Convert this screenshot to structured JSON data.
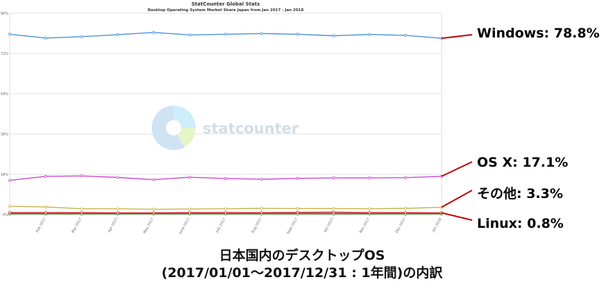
{
  "chart_data": {
    "type": "line",
    "title": "StatCounter Global Stats",
    "subtitle": "Desktop Operating System Market Share Japan from Jan 2017 - Jan 2018",
    "watermark": "statcounter",
    "categories": [
      "",
      "Feb 2017",
      "Mar 2017",
      "Apr 2017",
      "May 2017",
      "June 2017",
      "July 2017",
      "Aug 2017",
      "Sept 2017",
      "Oct 2017",
      "Nov 2017",
      "Dec 2017",
      "Jan 2018"
    ],
    "y_ticks": [
      0,
      18,
      36,
      54,
      72,
      90
    ],
    "y_tick_labels": [
      "0%",
      "18%",
      "36%",
      "54%",
      "72%",
      "90%"
    ],
    "ylim": [
      0,
      90
    ],
    "grid": true,
    "series": [
      {
        "name": "Windows",
        "color": "#4a90d9",
        "values": [
          80.6,
          78.9,
          79.5,
          80.4,
          81.4,
          80.3,
          80.6,
          80.9,
          80.6,
          79.9,
          80.5,
          80.1,
          78.8
        ]
      },
      {
        "name": "OS X",
        "color": "#c84ad0",
        "values": [
          15.3,
          17.1,
          17.3,
          16.6,
          15.6,
          16.7,
          16.1,
          15.8,
          16.2,
          16.4,
          16.4,
          16.5,
          17.1
        ]
      },
      {
        "name": "その他",
        "color": "#c8b44a",
        "values": [
          3.7,
          3.4,
          2.6,
          2.6,
          2.4,
          2.5,
          2.6,
          2.8,
          2.7,
          2.7,
          2.6,
          2.8,
          3.3
        ]
      },
      {
        "name": "Linux",
        "color": "#cc2b2b",
        "values": [
          0.9,
          0.9,
          0.9,
          0.8,
          0.8,
          0.9,
          0.9,
          0.9,
          1.0,
          1.1,
          0.9,
          0.9,
          0.8
        ]
      },
      {
        "name": "",
        "color": "#5a8a3a",
        "values": [
          0.3,
          0.3,
          0.3,
          0.3,
          0.3,
          0.3,
          0.3,
          0.3,
          0.3,
          0.3,
          0.3,
          0.3,
          0.3
        ]
      },
      {
        "name": "",
        "color": "#333333",
        "values": [
          0.5,
          0.5,
          0.5,
          0.5,
          0.5,
          0.5,
          0.5,
          0.5,
          0.5,
          0.5,
          0.5,
          0.5,
          0.5
        ]
      }
    ],
    "callouts": [
      {
        "label": "Windows: 78.8%",
        "series": "Windows"
      },
      {
        "label": "OS X: 17.1%",
        "series": "OS X"
      },
      {
        "label": "その他: 3.3%",
        "series": "その他"
      },
      {
        "label": "Linux: 0.8%",
        "series": "Linux"
      }
    ]
  },
  "caption": {
    "line1": "日本国内のデスクトップOS",
    "line2": "(2017/01/01〜2017/12/31 : 1年間)の内訳"
  }
}
